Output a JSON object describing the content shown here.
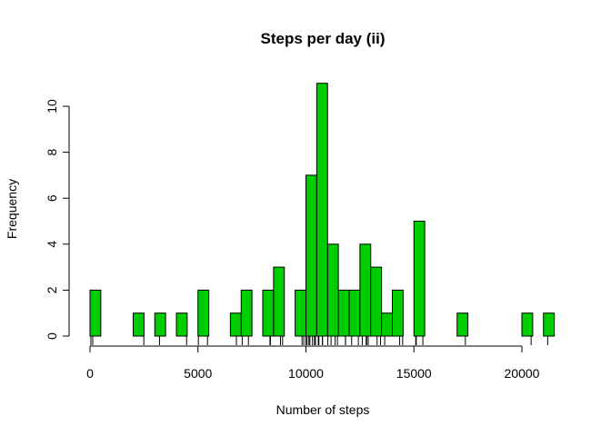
{
  "chart_data": {
    "type": "histogram",
    "title": "Steps per day (ii)",
    "xlabel": "Number of steps",
    "ylabel": "Frequency",
    "bin_width": 500,
    "bin_start": 0,
    "counts": [
      2,
      0,
      0,
      0,
      1,
      0,
      1,
      0,
      1,
      0,
      2,
      0,
      0,
      1,
      2,
      0,
      2,
      3,
      0,
      2,
      7,
      11,
      4,
      2,
      2,
      4,
      3,
      1,
      2,
      0,
      5,
      0,
      0,
      0,
      1,
      0,
      0,
      0,
      0,
      0,
      1,
      0,
      1
    ],
    "bar_color": "#00cd00",
    "xlim": [
      0,
      21500
    ],
    "ylim": [
      0,
      11
    ],
    "x_ticks": [
      0,
      5000,
      10000,
      15000,
      20000
    ],
    "x_tick_labels": [
      "0",
      "5000",
      "10000",
      "15000",
      "20000"
    ],
    "y_ticks": [
      0,
      2,
      4,
      6,
      8,
      10
    ],
    "y_tick_labels": [
      "0",
      "2",
      "4",
      "6",
      "8",
      "10"
    ],
    "rug": [
      41,
      126,
      2492,
      3219,
      4472,
      5018,
      5441,
      6778,
      7047,
      7336,
      8334,
      8355,
      8821,
      8918,
      9819,
      9900,
      10000,
      10056,
      10139,
      10183,
      10304,
      10395,
      10439,
      10571,
      10600,
      10765,
      10766,
      11015,
      11162,
      11352,
      11458,
      11829,
      11834,
      12116,
      12426,
      12608,
      12787,
      12811,
      12883,
      13294,
      13452,
      13646,
      14339,
      14478,
      15084,
      15110,
      15414,
      17382,
      20427,
      21194
    ]
  }
}
